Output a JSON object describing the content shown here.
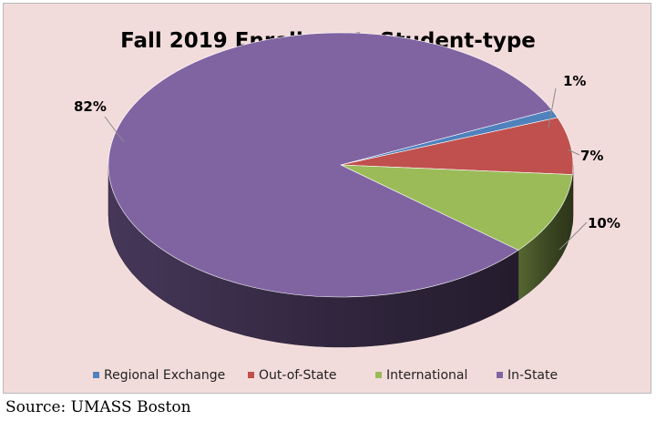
{
  "chart_data": {
    "type": "pie",
    "title": "Fall 2019 Enrollment: Student-type",
    "three_d": true,
    "categories": [
      "Regional Exchange",
      "Out-of-State",
      "International",
      "In-State"
    ],
    "values": [
      1,
      7,
      10,
      82
    ],
    "value_labels": [
      "1%",
      "7%",
      "10%",
      "82%"
    ],
    "colors": [
      "#4f81bd",
      "#c0504d",
      "#9bbb59",
      "#8064a2"
    ],
    "legend_position": "bottom",
    "background": "#f2dcdb"
  },
  "source": "Source: UMASS Boston"
}
